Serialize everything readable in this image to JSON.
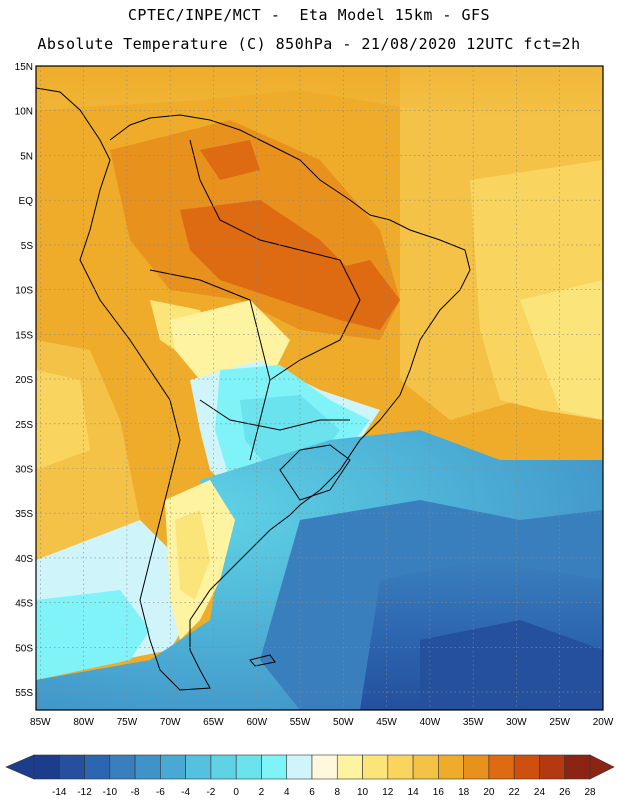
{
  "header": {
    "title_line1": "CPTEC/INPE/MCT -  Eta Model 15km - GFS",
    "title_line2": "Absolute Temperature (C) 850hPa - 21/08/2020 12UTC fct=2h"
  },
  "map": {
    "lat_labels": [
      "15N",
      "10N",
      "5N",
      "EQ",
      "5S",
      "10S",
      "15S",
      "20S",
      "25S",
      "30S",
      "35S",
      "40S",
      "45S",
      "50S",
      "55S"
    ],
    "lon_labels": [
      "85W",
      "80W",
      "75W",
      "70W",
      "65W",
      "60W",
      "55W",
      "50W",
      "45W",
      "40W",
      "35W",
      "30W",
      "25W",
      "20W"
    ],
    "lat_range": [
      15,
      -57
    ],
    "lon_range": [
      -85.5,
      -20
    ]
  },
  "colorbar": {
    "labels": [
      "-14",
      "-12",
      "-10",
      "-8",
      "-6",
      "-4",
      "-2",
      "0",
      "2",
      "4",
      "6",
      "8",
      "10",
      "12",
      "14",
      "16",
      "18",
      "20",
      "22",
      "24",
      "26",
      "28"
    ],
    "colors": [
      "#1c3d8c",
      "#24509e",
      "#2d66b0",
      "#3a7fbd",
      "#3f93c8",
      "#4aa9d4",
      "#55c0df",
      "#5fd3e6",
      "#6ae3ef",
      "#7ff3f8",
      "#cff5fb",
      "#fff8dc",
      "#fdf3a0",
      "#fbe57a",
      "#f9d45e",
      "#f3c247",
      "#efac2a",
      "#e8911c",
      "#de6a12",
      "#cf4f0e",
      "#b53910",
      "#8c2414"
    ]
  }
}
